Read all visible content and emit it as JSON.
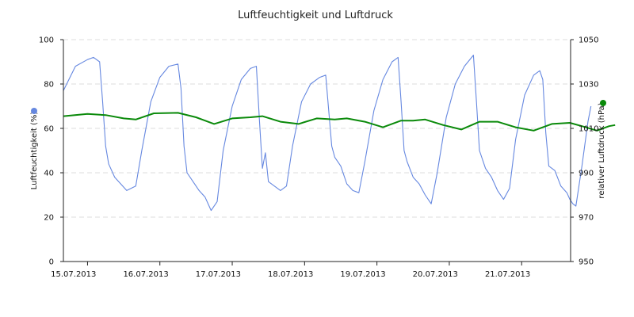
{
  "chart_data": {
    "type": "line",
    "title": "Luftfeuchtigkeit und Luftdruck",
    "x": {
      "type": "date",
      "range": [
        "2013-07-14T16:00",
        "2013-07-21T23:00"
      ],
      "tick_labels": [
        "15.07.2013",
        "16.07.2013",
        "17.07.2013",
        "18.07.2013",
        "19.07.2013",
        "20.07.2013",
        "21.07.2013"
      ]
    },
    "y_left": {
      "label": "Luftfeuchtigkeit (%)",
      "range": [
        0,
        100
      ],
      "ticks": [
        0,
        20,
        40,
        60,
        80,
        100
      ],
      "tick_labels": [
        "0",
        "20",
        "40",
        "60",
        "80",
        "100"
      ],
      "grid": true
    },
    "y_right": {
      "label": "relativer Luftdruck (hPa)",
      "range": [
        950,
        1050
      ],
      "ticks": [
        950,
        970,
        990,
        1010,
        1030,
        1050
      ],
      "tick_labels": [
        "950",
        "970",
        "990",
        "1010",
        "1030",
        "1050"
      ]
    },
    "legend": "axis-markers",
    "series": [
      {
        "name": "Luftfeuchtigkeit (%)",
        "axis": "left",
        "color": "#6688e0",
        "points": [
          [
            "2013-07-14T16:00",
            77
          ],
          [
            "2013-07-14T20:00",
            88
          ],
          [
            "2013-07-15T00:00",
            91
          ],
          [
            "2013-07-15T02:00",
            92
          ],
          [
            "2013-07-15T04:00",
            90
          ],
          [
            "2013-07-15T05:00",
            72
          ],
          [
            "2013-07-15T06:00",
            52
          ],
          [
            "2013-07-15T07:00",
            44
          ],
          [
            "2013-07-15T09:00",
            38
          ],
          [
            "2013-07-15T11:00",
            35
          ],
          [
            "2013-07-15T13:00",
            32
          ],
          [
            "2013-07-15T16:00",
            34
          ],
          [
            "2013-07-15T18:00",
            50
          ],
          [
            "2013-07-15T21:00",
            72
          ],
          [
            "2013-07-16T00:00",
            83
          ],
          [
            "2013-07-16T03:00",
            88
          ],
          [
            "2013-07-16T06:00",
            89
          ],
          [
            "2013-07-16T07:00",
            78
          ],
          [
            "2013-07-16T08:00",
            52
          ],
          [
            "2013-07-16T09:00",
            40
          ],
          [
            "2013-07-16T11:00",
            36
          ],
          [
            "2013-07-16T13:00",
            32
          ],
          [
            "2013-07-16T15:00",
            29
          ],
          [
            "2013-07-16T17:00",
            23
          ],
          [
            "2013-07-16T19:00",
            27
          ],
          [
            "2013-07-16T21:00",
            50
          ],
          [
            "2013-07-17T00:00",
            70
          ],
          [
            "2013-07-17T03:00",
            82
          ],
          [
            "2013-07-17T06:00",
            87
          ],
          [
            "2013-07-17T08:00",
            88
          ],
          [
            "2013-07-17T09:00",
            64
          ],
          [
            "2013-07-17T10:00",
            42
          ],
          [
            "2013-07-17T11:00",
            49
          ],
          [
            "2013-07-17T12:00",
            36
          ],
          [
            "2013-07-17T14:00",
            34
          ],
          [
            "2013-07-17T16:00",
            32
          ],
          [
            "2013-07-17T18:00",
            34
          ],
          [
            "2013-07-17T20:00",
            52
          ],
          [
            "2013-07-17T23:00",
            72
          ],
          [
            "2013-07-18T02:00",
            80
          ],
          [
            "2013-07-18T05:00",
            83
          ],
          [
            "2013-07-18T07:00",
            84
          ],
          [
            "2013-07-18T08:00",
            68
          ],
          [
            "2013-07-18T09:00",
            52
          ],
          [
            "2013-07-18T10:00",
            47
          ],
          [
            "2013-07-18T12:00",
            43
          ],
          [
            "2013-07-18T14:00",
            35
          ],
          [
            "2013-07-18T16:00",
            32
          ],
          [
            "2013-07-18T18:00",
            31
          ],
          [
            "2013-07-18T20:00",
            45
          ],
          [
            "2013-07-18T23:00",
            68
          ],
          [
            "2013-07-19T02:00",
            82
          ],
          [
            "2013-07-19T05:00",
            90
          ],
          [
            "2013-07-19T07:00",
            92
          ],
          [
            "2013-07-19T08:00",
            72
          ],
          [
            "2013-07-19T09:00",
            50
          ],
          [
            "2013-07-19T10:00",
            45
          ],
          [
            "2013-07-19T12:00",
            38
          ],
          [
            "2013-07-19T14:00",
            35
          ],
          [
            "2013-07-19T16:00",
            30
          ],
          [
            "2013-07-19T18:00",
            26
          ],
          [
            "2013-07-19T20:00",
            40
          ],
          [
            "2013-07-19T23:00",
            65
          ],
          [
            "2013-07-20T02:00",
            80
          ],
          [
            "2013-07-20T05:00",
            88
          ],
          [
            "2013-07-20T08:00",
            93
          ],
          [
            "2013-07-20T09:00",
            72
          ],
          [
            "2013-07-20T10:00",
            50
          ],
          [
            "2013-07-20T12:00",
            42
          ],
          [
            "2013-07-20T14:00",
            38
          ],
          [
            "2013-07-20T16:00",
            32
          ],
          [
            "2013-07-20T18:00",
            28
          ],
          [
            "2013-07-20T20:00",
            33
          ],
          [
            "2013-07-20T22:00",
            55
          ],
          [
            "2013-07-21T01:00",
            75
          ],
          [
            "2013-07-21T04:00",
            84
          ],
          [
            "2013-07-21T06:00",
            86
          ],
          [
            "2013-07-21T07:00",
            82
          ],
          [
            "2013-07-21T08:00",
            58
          ],
          [
            "2013-07-21T09:00",
            43
          ],
          [
            "2013-07-21T11:00",
            41
          ],
          [
            "2013-07-21T13:00",
            34
          ],
          [
            "2013-07-21T15:00",
            31
          ],
          [
            "2013-07-21T16:00",
            28
          ],
          [
            "2013-07-21T17:00",
            26
          ],
          [
            "2013-07-21T18:00",
            25
          ],
          [
            "2013-07-21T20:00",
            43
          ],
          [
            "2013-07-21T22:00",
            63
          ],
          [
            "2013-07-21T23:00",
            70
          ]
        ]
      },
      {
        "name": "relativer Luftdruck (hPa)",
        "axis": "right",
        "color": "#0a8a0a",
        "points": [
          [
            "2013-07-14T16:00",
            1015.5
          ],
          [
            "2013-07-15T00:00",
            1016.5
          ],
          [
            "2013-07-15T06:00",
            1016.0
          ],
          [
            "2013-07-15T12:00",
            1014.5
          ],
          [
            "2013-07-15T16:00",
            1014.0
          ],
          [
            "2013-07-15T22:00",
            1016.8
          ],
          [
            "2013-07-16T06:00",
            1017.0
          ],
          [
            "2013-07-16T12:00",
            1015.0
          ],
          [
            "2013-07-16T18:00",
            1012.0
          ],
          [
            "2013-07-17T00:00",
            1014.5
          ],
          [
            "2013-07-17T06:00",
            1015.0
          ],
          [
            "2013-07-17T10:00",
            1015.5
          ],
          [
            "2013-07-17T16:00",
            1013.0
          ],
          [
            "2013-07-17T22:00",
            1012.0
          ],
          [
            "2013-07-18T04:00",
            1014.5
          ],
          [
            "2013-07-18T10:00",
            1014.0
          ],
          [
            "2013-07-18T14:00",
            1014.5
          ],
          [
            "2013-07-18T20:00",
            1013.0
          ],
          [
            "2013-07-19T02:00",
            1010.5
          ],
          [
            "2013-07-19T08:00",
            1013.5
          ],
          [
            "2013-07-19T12:00",
            1013.5
          ],
          [
            "2013-07-19T16:00",
            1014.0
          ],
          [
            "2013-07-19T22:00",
            1011.5
          ],
          [
            "2013-07-20T04:00",
            1009.5
          ],
          [
            "2013-07-20T10:00",
            1013.0
          ],
          [
            "2013-07-20T16:00",
            1013.0
          ],
          [
            "2013-07-20T22:00",
            1010.5
          ],
          [
            "2013-07-21T04:00",
            1009.0
          ],
          [
            "2013-07-21T10:00",
            1012.0
          ],
          [
            "2013-07-21T16:00",
            1012.5
          ],
          [
            "2013-07-21T20:00",
            1011.0
          ],
          [
            "2013-07-22T01:00",
            1009.0
          ],
          [
            "2013-07-22T05:00",
            1011.0
          ],
          [
            "2013-07-22T07:00",
            1011.5
          ]
        ]
      }
    ]
  }
}
